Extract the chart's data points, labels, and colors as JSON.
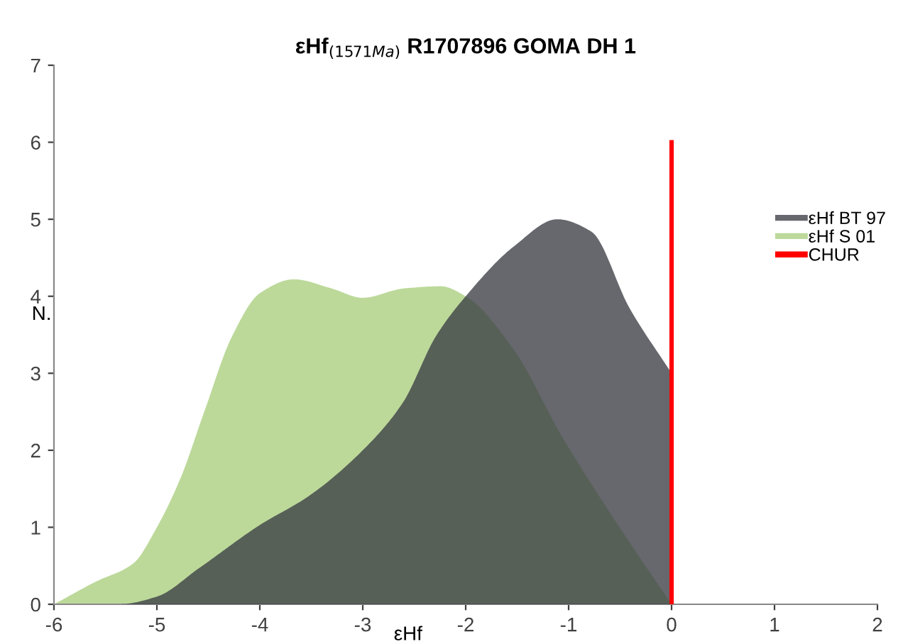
{
  "chart_data": {
    "type": "area",
    "title": "εHf$_{(1571Ma)}$ R1707896 GOMA DH 1",
    "xlabel": "εHf",
    "ylabel": "N.",
    "xlim": [
      -6,
      2
    ],
    "xticks": [
      -6,
      -5,
      -4,
      -3,
      -2,
      -1,
      0,
      1,
      2
    ],
    "ylim": [
      0,
      7
    ],
    "yticks": [
      0,
      1,
      2,
      3,
      4,
      5,
      6,
      7
    ],
    "grid": false,
    "legend": "right",
    "series": [
      {
        "name": "εHf BT 97",
        "color": "#3b3d44",
        "x": [
          -6,
          -5.37,
          -5,
          -4.59,
          -4,
          -3.53,
          -3,
          -2.61,
          -2.29,
          -2,
          -1.53,
          -1.11,
          -0.78,
          -0.41,
          0
        ],
        "values": [
          0,
          0,
          0.1,
          0.47,
          1.03,
          1.4,
          2.0,
          2.62,
          3.48,
          4.0,
          4.65,
          5.0,
          4.84,
          3.85,
          3.0
        ]
      },
      {
        "name": "εHf S 01",
        "color": "#bcd99a",
        "x": [
          -6,
          -5.6,
          -5.23,
          -5,
          -4.77,
          -4.54,
          -4.27,
          -4,
          -3.67,
          -3.3,
          -3,
          -2.61,
          -2.24,
          -2,
          -1.53,
          -1.07,
          -0.55,
          0
        ],
        "values": [
          0,
          0.29,
          0.53,
          1.0,
          1.64,
          2.5,
          3.48,
          4.04,
          4.22,
          4.1,
          3.98,
          4.1,
          4.13,
          4.0,
          3.3,
          2.19,
          1.09,
          0
        ]
      },
      {
        "name": "CHUR",
        "type": "line",
        "color": "#ff0000",
        "x": [
          0,
          0
        ],
        "values": [
          0,
          6
        ]
      }
    ]
  }
}
